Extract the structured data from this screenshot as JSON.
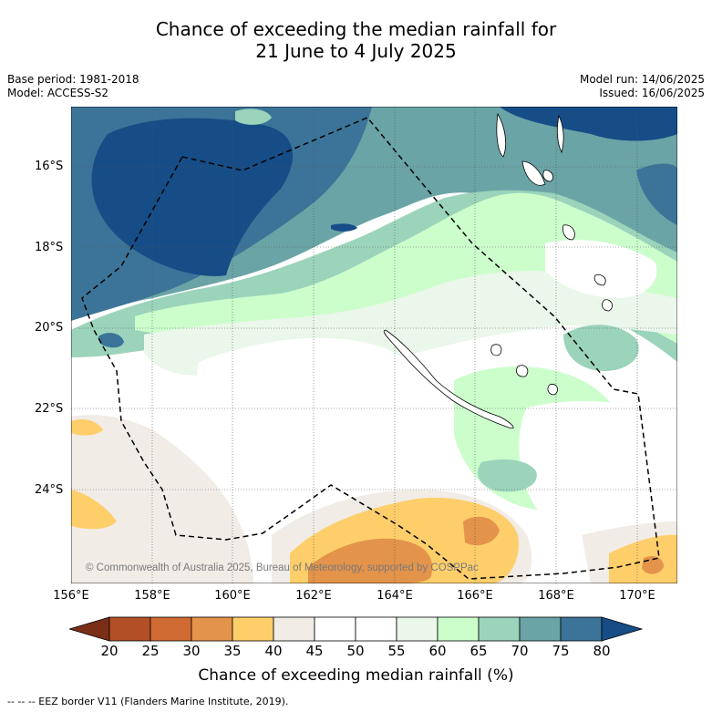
{
  "title": {
    "line1": "Chance of exceeding the median rainfall for",
    "line2": "21 June to 4 July 2025"
  },
  "meta": {
    "base_period": "Base period: 1981-2018",
    "model": "Model: ACCESS-S2",
    "model_run": "Model run: 14/06/2025",
    "issued": "Issued: 16/06/2025"
  },
  "map": {
    "lat_labels": [
      "16°S",
      "18°S",
      "20°S",
      "22°S",
      "24°S"
    ],
    "lon_labels": [
      "156°E",
      "158°E",
      "160°E",
      "162°E",
      "164°E",
      "166°E",
      "168°E",
      "170°E"
    ],
    "copyright": "© Commonwealth of Australia 2025, Bureau of Meteorology, supported by COSPPac",
    "extent": {
      "lon_min": 156,
      "lon_max": 171,
      "lat_min": -26,
      "lat_max": -14.5
    }
  },
  "colorbar": {
    "ticks": [
      "20",
      "25",
      "30",
      "35",
      "40",
      "45",
      "50",
      "55",
      "60",
      "65",
      "70",
      "75",
      "80"
    ],
    "colors": [
      "#7a2e17",
      "#b34f26",
      "#d06a33",
      "#e3934a",
      "#fece6a",
      "#f1ece6",
      "#ffffff",
      "#ffffff",
      "#eaf7ea",
      "#ccfecc",
      "#9bd3bb",
      "#6aa4a6",
      "#3b7498",
      "#164d87"
    ],
    "label": "Chance of exceeding median rainfall (%)"
  },
  "footer": "--  --  -- EEZ border V11 (Flanders Marine Institute, 2019)."
}
